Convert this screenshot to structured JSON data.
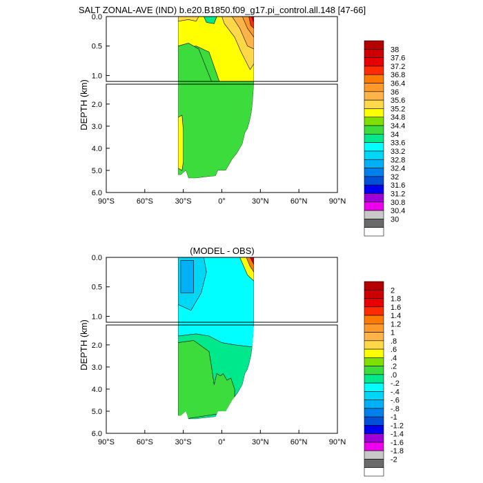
{
  "title": "SALT ZONAL-AVE (IND) b.e20.B1850.f09_g17.pi_control.all.148 [47-66]",
  "chart_data": [
    {
      "type": "contour",
      "title": "SALT ZONAL-AVE (IND) b.e20.B1850.f09_g17.pi_control.all.148 [47-66]",
      "ylabel": "DEPTH (km)",
      "x_ticks": [
        "90°S",
        "60°S",
        "30°S",
        "0°",
        "30°N",
        "90°N"
      ],
      "x_ticks_all": [
        "90°S",
        "60°S",
        "30°S",
        "0°",
        "30°N",
        "60°N",
        "90°N"
      ],
      "y_ticks_top": [
        "0.0",
        "0.5",
        "1.0"
      ],
      "y_ticks_bottom": [
        "2.0",
        "3.0",
        "4.0",
        "5.0",
        "6.0"
      ],
      "xlim": [
        -90,
        90
      ],
      "ylim_top": [
        0,
        1.1
      ],
      "ylim_bottom": [
        1.1,
        6.0
      ],
      "data_extent_lat": [
        -34,
        25
      ],
      "colorbar_levels": [
        "38",
        "37.6",
        "37.2",
        "36.8",
        "36.4",
        "36",
        "35.6",
        "35.2",
        "34.8",
        "34.4",
        "34",
        "33.6",
        "33.2",
        "32.8",
        "32.4",
        "32",
        "31.6",
        "31.2",
        "30.8",
        "30.4",
        "30"
      ],
      "colorbar_colors": [
        "#b40000",
        "#cc0000",
        "#e80000",
        "#fe2c00",
        "#fe7a00",
        "#ff9a2a",
        "#ffb44a",
        "#ffd84a",
        "#ffff00",
        "#7fe000",
        "#3ddc3d",
        "#00e88c",
        "#00ffff",
        "#00d6f6",
        "#00b0f6",
        "#0080ea",
        "#0050d8",
        "#0000f0",
        "#a000d8",
        "#ee00ee",
        "#c8c8c8",
        "#6a6a6a",
        "#ffffff"
      ]
    },
    {
      "type": "contour",
      "title": "(MODEL - OBS)",
      "ylabel": "DEPTH (km)",
      "x_ticks_all": [
        "90°S",
        "60°S",
        "30°S",
        "0°",
        "30°N",
        "60°N",
        "90°N"
      ],
      "y_ticks_top": [
        "0.0",
        "0.5",
        "1.0"
      ],
      "y_ticks_bottom": [
        "2.0",
        "3.0",
        "4.0",
        "5.0",
        "6.0"
      ],
      "xlim": [
        -90,
        90
      ],
      "ylim_top": [
        0,
        1.1
      ],
      "ylim_bottom": [
        1.1,
        6.0
      ],
      "data_extent_lat": [
        -34,
        25
      ],
      "colorbar_levels": [
        "2",
        "1.8",
        "1.6",
        "1.4",
        "1.2",
        "1",
        ".8",
        ".6",
        ".4",
        ".2",
        ".0",
        "-.2",
        "-.4",
        "-.6",
        "-.8",
        "-1",
        "-1.2",
        "-1.4",
        "-1.6",
        "-1.8",
        "-2"
      ],
      "colorbar_colors": [
        "#b40000",
        "#cc0000",
        "#e80000",
        "#fe2c00",
        "#fe7a00",
        "#ff9a2a",
        "#ffb44a",
        "#ffd84a",
        "#ffff00",
        "#7fe000",
        "#3ddc3d",
        "#00e88c",
        "#00ffff",
        "#00d6f6",
        "#00b0f6",
        "#0080ea",
        "#0050d8",
        "#0000f0",
        "#a000d8",
        "#ee00ee",
        "#c8c8c8",
        "#6a6a6a",
        "#ffffff"
      ]
    }
  ],
  "panels": [
    {
      "title": "SALT ZONAL-AVE (IND) b.e20.B1850.f09_g17.pi_control.all.148 [47-66]",
      "ylabel": "DEPTH (km)"
    },
    {
      "title": "(MODEL - OBS)",
      "ylabel": "DEPTH (km)"
    }
  ]
}
